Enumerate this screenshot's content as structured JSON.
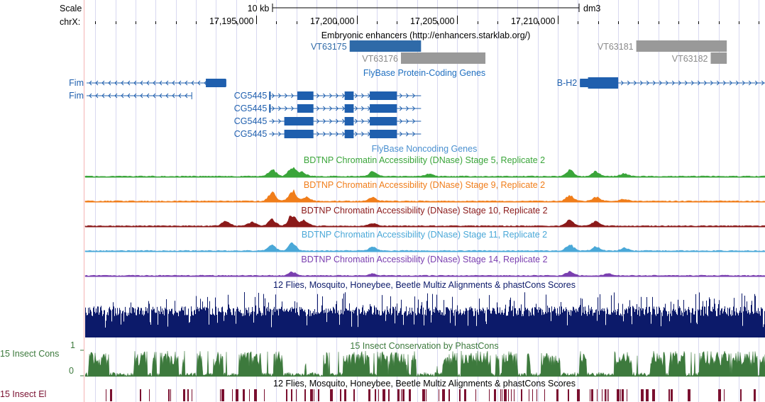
{
  "header": {
    "scale_label": "Scale",
    "chrom_label": "chrX:",
    "scalebar_label": "10 kb",
    "assembly": "dm3",
    "ticks": [
      {
        "pos": 17195000,
        "label": "17,195,000"
      },
      {
        "pos": 17200000,
        "label": "17,200,000"
      },
      {
        "pos": 17205000,
        "label": "17,205,000"
      },
      {
        "pos": 17210000,
        "label": "17,210,000"
      }
    ]
  },
  "view": {
    "start": 17186500,
    "end": 17220300
  },
  "colors": {
    "gene_blue": "#1f5fae",
    "enhancer_gray": "#999999",
    "stage5": "#3aa53a",
    "stage9": "#f07d1a",
    "stage10": "#8b1a1a",
    "stage11": "#4aa8d8",
    "stage14": "#7a3fb0",
    "multiz": "#0c1a6a",
    "phastcons": "#3d7a3d",
    "elements": "#7a1030",
    "gridline": "#d8d8f0"
  },
  "tracks": {
    "enhancers": {
      "title": "Embryonic enhancers (http://enhancers.starklab.org/)",
      "items": [
        {
          "name": "VT63175",
          "start": 17199650,
          "end": 17203200,
          "color": "#2f6aa8"
        },
        {
          "name": "VT63176",
          "start": 17202200,
          "end": 17206400,
          "color": "#999999"
        },
        {
          "name": "VT63181",
          "start": 17213900,
          "end": 17218400,
          "color": "#999999"
        },
        {
          "name": "VT63182",
          "start": 17217600,
          "end": 17218400,
          "color": "#999999"
        }
      ]
    },
    "coding": {
      "title": "FlyBase Protein-Coding Genes",
      "genes": [
        {
          "name": "Fim",
          "strand": "-",
          "start": 17186500,
          "end": 17193500,
          "exons": [
            [
              17192500,
              17193500
            ]
          ],
          "thin_end": 17192700
        },
        {
          "name": "Fim",
          "strand": "-",
          "start": 17186500,
          "end": 17191800,
          "exons": [],
          "thin_end": 17191800
        },
        {
          "name": "CG5445",
          "strand": "+",
          "start": 17195650,
          "end": 17203200,
          "exons": [
            [
              17195650,
              17195700
            ],
            [
              17197050,
              17197850
            ],
            [
              17199400,
              17199850
            ],
            [
              17200650,
              17202000
            ]
          ]
        },
        {
          "name": "CG5445",
          "strand": "+",
          "start": 17195650,
          "end": 17203200,
          "exons": [
            [
              17195650,
              17195700
            ],
            [
              17197050,
              17197850
            ],
            [
              17199400,
              17199850
            ],
            [
              17200650,
              17202000
            ]
          ]
        },
        {
          "name": "CG5445",
          "strand": "+",
          "start": 17195650,
          "end": 17203200,
          "exons": [
            [
              17196400,
              17197850
            ],
            [
              17199400,
              17199850
            ],
            [
              17200650,
              17202000
            ]
          ]
        },
        {
          "name": "CG5445",
          "strand": "+",
          "start": 17195650,
          "end": 17203200,
          "exons": [
            [
              17196400,
              17197850
            ],
            [
              17199400,
              17199850
            ],
            [
              17200650,
              17202000
            ]
          ]
        },
        {
          "name": "B-H2",
          "strand": "+",
          "start": 17211100,
          "end": 17220300,
          "exons": [
            [
              17211100,
              17211500
            ],
            [
              17211500,
              17213000
            ]
          ]
        }
      ]
    },
    "noncoding": {
      "title": "FlyBase Noncoding Genes"
    },
    "dnase": [
      {
        "title": "BDTNP Chromatin Accessibility (DNase) Stage 5, Replicate 2",
        "color": "#3aa53a"
      },
      {
        "title": "BDTNP Chromatin Accessibility (DNase) Stage 9, Replicate 2",
        "color": "#f07d1a"
      },
      {
        "title": "BDTNP Chromatin Accessibility (DNase) Stage 10, Replicate 2",
        "color": "#8b1a1a"
      },
      {
        "title": "BDTNP Chromatin Accessibility (DNase) Stage 11, Replicate 2",
        "color": "#4aa8d8"
      },
      {
        "title": "BDTNP Chromatin Accessibility (DNase) Stage 14, Replicate 2",
        "color": "#7a3fb0"
      }
    ],
    "multiz": {
      "title": "12 Flies, Mosquito, Honeybee, Beetle Multiz Alignments & phastCons Scores"
    },
    "phastcons": {
      "title": "15 Insect Conservation by PhastCons",
      "label": "15 Insect Cons",
      "ymax": "1",
      "ymin": "0"
    },
    "elements": {
      "title": "12 Flies, Mosquito, Honeybee, Beetle Multiz Alignments & phastCons Scores",
      "label": "15 Insect El"
    }
  }
}
